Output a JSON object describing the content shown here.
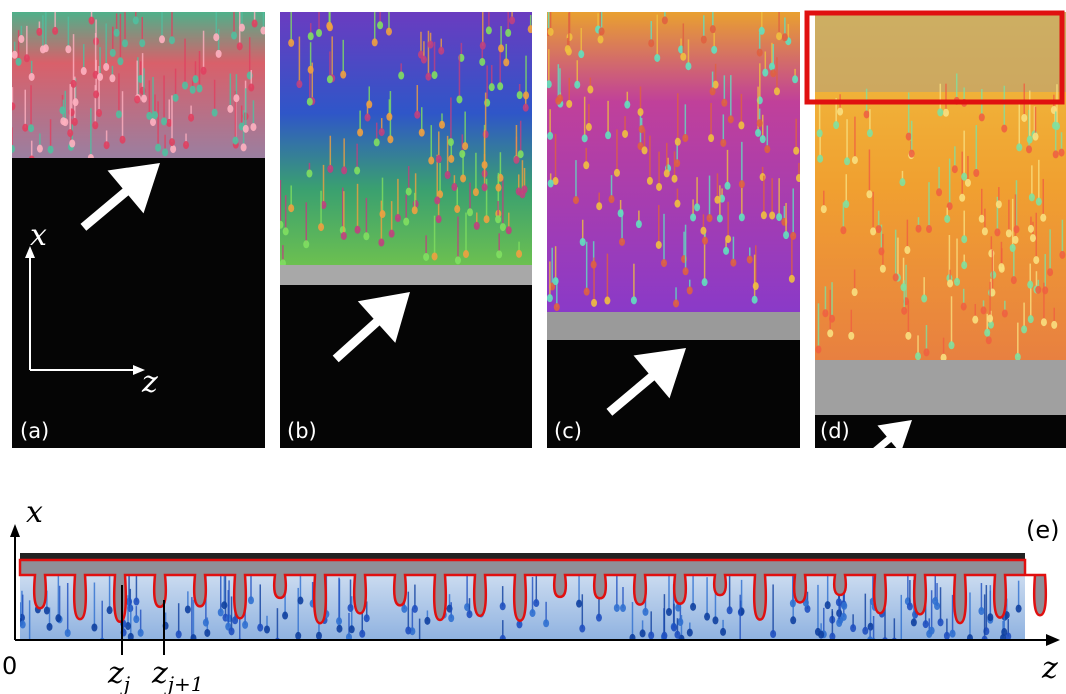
{
  "panels": [
    {
      "label": "(a)"
    },
    {
      "label": "(b)"
    },
    {
      "label": "(c)"
    },
    {
      "label": "(d)"
    }
  ],
  "panel_a_axes": {
    "x": "x",
    "z": "z"
  },
  "panel_e": {
    "label": "(e)",
    "x_axis": "x",
    "origin": "0",
    "z_axis": "z",
    "markers": [
      {
        "base": "z",
        "sub": "j"
      },
      {
        "base": "z",
        "sub": "j+1"
      }
    ]
  }
}
